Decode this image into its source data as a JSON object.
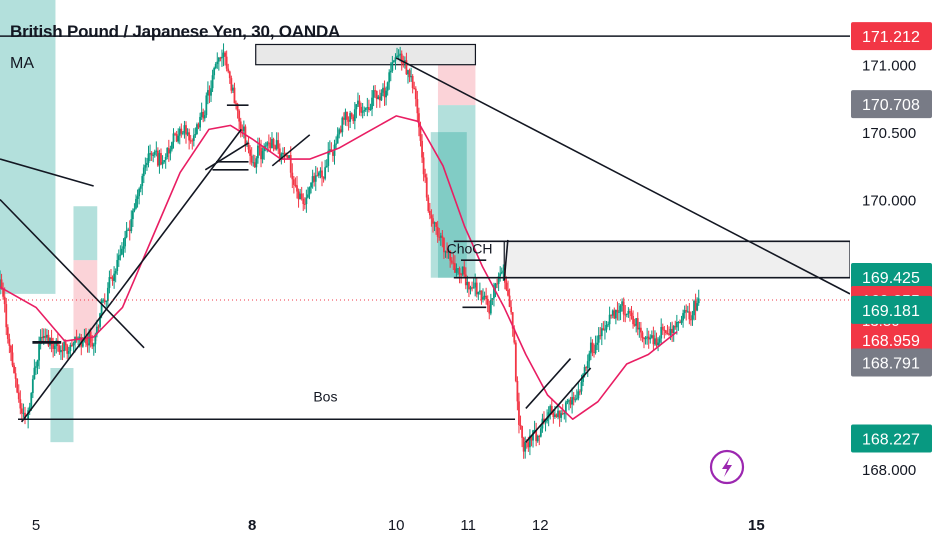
{
  "header": {
    "title": "British Pound / Japanese Yen, 30, OANDA",
    "indicator": "MA"
  },
  "chart_data": {
    "type": "candlestick",
    "symbol": "GBPJPY",
    "timeframe": "30",
    "ylim": [
      167.86,
      171.48
    ],
    "y_ticks": [
      "171.000",
      "170.500",
      "170.000",
      "168.000"
    ],
    "x_ticks": [
      {
        "label": "5",
        "x": 5.0,
        "bold": false
      },
      {
        "label": "8",
        "x": 8.0,
        "bold": true
      },
      {
        "label": "10",
        "x": 10.0,
        "bold": false
      },
      {
        "label": "11",
        "x": 11.0,
        "bold": false
      },
      {
        "label": "12",
        "x": 12.0,
        "bold": false
      },
      {
        "label": "15",
        "x": 15.0,
        "bold": true
      }
    ],
    "xlim": [
      4.5,
      16.3
    ],
    "price_badges": [
      {
        "label": "171.212",
        "value": 171.212,
        "color": "#f23645",
        "text_color": "#ffffff"
      },
      {
        "label": "170.708",
        "value": 170.708,
        "color": "#787b86",
        "text_color": "#ffffff"
      },
      {
        "label": "169.425",
        "value": 169.425,
        "color": "#089981",
        "text_color": "#ffffff"
      },
      {
        "label": "169.255",
        "value": 169.255,
        "color": "#f23645",
        "text_color": "#ffffff",
        "sub_label": "13:50"
      },
      {
        "label": "169.181",
        "value": 169.181,
        "color": "#089981",
        "text_color": "#ffffff"
      },
      {
        "label": "168.959",
        "value": 168.959,
        "color": "#f23645",
        "text_color": "#ffffff"
      },
      {
        "label": "168.791",
        "value": 168.791,
        "color": "#787b86",
        "text_color": "#ffffff"
      },
      {
        "label": "168.227",
        "value": 168.227,
        "color": "#089981",
        "text_color": "#ffffff"
      }
    ],
    "last_price": 169.255,
    "annotations": [
      {
        "text": "ChoCH",
        "x": 10.7,
        "y": 169.6
      },
      {
        "text": "Bos",
        "x": 8.85,
        "y": 168.5
      }
    ],
    "candle_keypoints": [
      [
        4.5,
        169.35
      ],
      [
        4.75,
        168.5
      ],
      [
        4.85,
        168.35
      ],
      [
        5.05,
        169.0
      ],
      [
        5.4,
        168.9
      ],
      [
        5.8,
        169.0
      ],
      [
        6.05,
        169.45
      ],
      [
        6.3,
        169.8
      ],
      [
        6.55,
        170.35
      ],
      [
        6.75,
        170.3
      ],
      [
        7.0,
        170.5
      ],
      [
        7.2,
        170.45
      ],
      [
        7.45,
        170.9
      ],
      [
        7.6,
        171.12
      ],
      [
        7.8,
        170.6
      ],
      [
        8.0,
        170.3
      ],
      [
        8.3,
        170.45
      ],
      [
        8.5,
        170.25
      ],
      [
        8.7,
        169.95
      ],
      [
        9.0,
        170.25
      ],
      [
        9.3,
        170.6
      ],
      [
        9.6,
        170.75
      ],
      [
        9.85,
        170.8
      ],
      [
        10.0,
        171.1
      ],
      [
        10.25,
        170.8
      ],
      [
        10.45,
        169.85
      ],
      [
        10.75,
        169.55
      ],
      [
        10.95,
        169.4
      ],
      [
        11.15,
        169.3
      ],
      [
        11.3,
        169.2
      ],
      [
        11.45,
        169.5
      ],
      [
        11.6,
        169.15
      ],
      [
        11.7,
        168.3
      ],
      [
        11.8,
        168.15
      ],
      [
        12.1,
        168.4
      ],
      [
        12.45,
        168.5
      ],
      [
        12.7,
        168.9
      ],
      [
        13.1,
        169.2
      ],
      [
        13.5,
        168.95
      ],
      [
        13.9,
        169.05
      ],
      [
        14.2,
        169.25
      ]
    ],
    "ma_keypoints": [
      [
        4.5,
        169.35
      ],
      [
        5.0,
        169.2
      ],
      [
        5.4,
        168.95
      ],
      [
        5.8,
        168.98
      ],
      [
        6.2,
        169.2
      ],
      [
        6.6,
        169.7
      ],
      [
        7.0,
        170.2
      ],
      [
        7.4,
        170.52
      ],
      [
        7.7,
        170.55
      ],
      [
        8.0,
        170.45
      ],
      [
        8.4,
        170.3
      ],
      [
        8.8,
        170.3
      ],
      [
        9.2,
        170.38
      ],
      [
        9.6,
        170.5
      ],
      [
        10.0,
        170.62
      ],
      [
        10.3,
        170.58
      ],
      [
        10.65,
        170.25
      ],
      [
        10.95,
        169.8
      ],
      [
        11.2,
        169.5
      ],
      [
        11.5,
        169.2
      ],
      [
        11.8,
        168.85
      ],
      [
        12.1,
        168.55
      ],
      [
        12.45,
        168.37
      ],
      [
        12.8,
        168.5
      ],
      [
        13.2,
        168.78
      ],
      [
        13.5,
        168.85
      ],
      [
        13.9,
        169.02
      ]
    ],
    "rectangles": [
      {
        "x0": 4.5,
        "x1": 5.27,
        "y0": 169.3,
        "y1": 171.48,
        "color": "#26a69a",
        "opacity": 0.35
      },
      {
        "x0": 5.2,
        "x1": 5.52,
        "y0": 168.2,
        "y1": 168.75,
        "color": "#26a69a",
        "opacity": 0.35
      },
      {
        "x0": 5.52,
        "x1": 5.85,
        "y0": 169.55,
        "y1": 169.95,
        "color": "#26a69a",
        "opacity": 0.35
      },
      {
        "x0": 5.52,
        "x1": 5.85,
        "y0": 168.95,
        "y1": 169.55,
        "color": "#f7a8b2",
        "opacity": 0.5
      },
      {
        "x0": 10.58,
        "x1": 11.1,
        "y0": 170.7,
        "y1": 171.1,
        "color": "#f7a8b2",
        "opacity": 0.5
      },
      {
        "x0": 10.58,
        "x1": 11.1,
        "y0": 169.42,
        "y1": 170.7,
        "color": "#26a69a",
        "opacity": 0.35
      },
      {
        "x0": 10.48,
        "x1": 10.98,
        "y0": 169.42,
        "y1": 170.5,
        "color": "#26a69a",
        "opacity": 0.35
      }
    ],
    "boxes": [
      {
        "x0": 8.05,
        "x1": 11.1,
        "y0": 171.0,
        "y1": 171.15,
        "fill": "#e8e8e8"
      },
      {
        "x0": 11.5,
        "x1": 16.3,
        "y0": 169.42,
        "y1": 169.69,
        "fill": "#efefef"
      }
    ],
    "lines": [
      {
        "x0": 4.5,
        "x1": 16.3,
        "y0": 171.212,
        "y1": 171.212,
        "w": 1.6
      },
      {
        "x0": 4.5,
        "x1": 5.8,
        "y0": 170.3,
        "y1": 170.1,
        "w": 1.6
      },
      {
        "x0": 4.5,
        "x1": 6.5,
        "y0": 170.0,
        "y1": 168.9,
        "w": 1.6
      },
      {
        "x0": 4.8,
        "x1": 7.85,
        "y0": 168.35,
        "y1": 170.52,
        "w": 1.6
      },
      {
        "x0": 4.75,
        "x1": 11.65,
        "y0": 168.37,
        "y1": 168.37,
        "w": 1.6
      },
      {
        "x0": 4.95,
        "x1": 5.35,
        "y0": 168.94,
        "y1": 168.94,
        "w": 2.8
      },
      {
        "x0": 7.5,
        "x1": 7.95,
        "y0": 170.28,
        "y1": 170.28,
        "w": 1.6
      },
      {
        "x0": 7.45,
        "x1": 7.95,
        "y0": 170.22,
        "y1": 170.22,
        "w": 1.6
      },
      {
        "x0": 7.35,
        "x1": 7.95,
        "y0": 170.22,
        "y1": 170.42,
        "w": 1.6
      },
      {
        "x0": 7.65,
        "x1": 7.95,
        "y0": 170.7,
        "y1": 170.7,
        "w": 1.6
      },
      {
        "x0": 8.28,
        "x1": 8.8,
        "y0": 170.25,
        "y1": 170.48,
        "w": 1.6
      },
      {
        "x0": 10.0,
        "x1": 16.3,
        "y0": 171.05,
        "y1": 169.3,
        "w": 1.6
      },
      {
        "x0": 10.8,
        "x1": 16.3,
        "y0": 169.69,
        "y1": 169.69,
        "w": 1.6
      },
      {
        "x0": 10.8,
        "x1": 16.3,
        "y0": 169.42,
        "y1": 169.42,
        "w": 1.6
      },
      {
        "x0": 10.9,
        "x1": 11.25,
        "y0": 169.55,
        "y1": 169.55,
        "w": 1.6
      },
      {
        "x0": 10.92,
        "x1": 11.25,
        "y0": 169.2,
        "y1": 169.2,
        "w": 1.6
      },
      {
        "x0": 11.5,
        "x1": 11.55,
        "y0": 169.4,
        "y1": 169.7,
        "w": 1.6
      },
      {
        "x0": 11.8,
        "x1": 12.42,
        "y0": 168.45,
        "y1": 168.82,
        "w": 1.6
      },
      {
        "x0": 11.8,
        "x1": 12.7,
        "y0": 168.2,
        "y1": 168.75,
        "w": 1.6
      }
    ]
  }
}
